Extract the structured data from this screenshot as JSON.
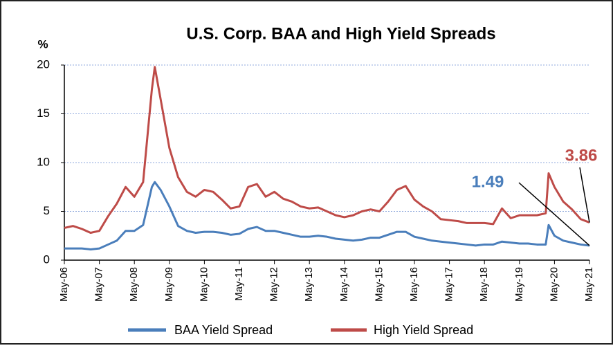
{
  "chart_data": {
    "type": "line",
    "title": "U.S. Corp. BAA and High Yield Spreads",
    "y_label": "%",
    "x": [
      "May-06",
      "Aug-06",
      "Nov-06",
      "Feb-07",
      "May-07",
      "Aug-07",
      "Nov-07",
      "Feb-08",
      "May-08",
      "Aug-08",
      "Nov-08",
      "Dec-08",
      "Feb-09",
      "May-09",
      "Aug-09",
      "Nov-09",
      "Feb-10",
      "May-10",
      "Aug-10",
      "Nov-10",
      "Feb-11",
      "May-11",
      "Aug-11",
      "Nov-11",
      "Feb-12",
      "May-12",
      "Aug-12",
      "Nov-12",
      "Feb-13",
      "May-13",
      "Aug-13",
      "Nov-13",
      "Feb-14",
      "May-14",
      "Aug-14",
      "Nov-14",
      "Feb-15",
      "May-15",
      "Aug-15",
      "Nov-15",
      "Feb-16",
      "May-16",
      "Aug-16",
      "Nov-16",
      "Feb-17",
      "May-17",
      "Aug-17",
      "Nov-17",
      "Feb-18",
      "May-18",
      "Aug-18",
      "Nov-18",
      "Feb-19",
      "May-19",
      "Aug-19",
      "Nov-19",
      "Feb-20",
      "Mar-20",
      "May-20",
      "Aug-20",
      "Nov-20",
      "Feb-21",
      "May-21"
    ],
    "series": [
      {
        "name": "BAA Yield Spread",
        "color": "#4a7ebb",
        "values": [
          1.2,
          1.2,
          1.2,
          1.1,
          1.2,
          1.6,
          2.0,
          3.0,
          3.0,
          3.6,
          7.5,
          8.0,
          7.2,
          5.5,
          3.5,
          3.0,
          2.8,
          2.9,
          2.9,
          2.8,
          2.6,
          2.7,
          3.2,
          3.4,
          3.0,
          3.0,
          2.8,
          2.6,
          2.4,
          2.4,
          2.5,
          2.4,
          2.2,
          2.1,
          2.0,
          2.1,
          2.3,
          2.3,
          2.6,
          2.9,
          2.9,
          2.4,
          2.2,
          2.0,
          1.9,
          1.8,
          1.7,
          1.6,
          1.5,
          1.6,
          1.6,
          1.9,
          1.8,
          1.7,
          1.7,
          1.6,
          1.6,
          3.6,
          2.5,
          2.0,
          1.8,
          1.6,
          1.49
        ]
      },
      {
        "name": "High Yield Spread",
        "color": "#be4b48",
        "values": [
          3.3,
          3.5,
          3.2,
          2.8,
          3.0,
          4.5,
          5.8,
          7.5,
          6.5,
          8.0,
          17.5,
          19.8,
          16.5,
          11.5,
          8.5,
          7.0,
          6.5,
          7.2,
          7.0,
          6.2,
          5.3,
          5.5,
          7.5,
          7.8,
          6.5,
          7.0,
          6.3,
          6.0,
          5.5,
          5.3,
          5.4,
          5.0,
          4.6,
          4.4,
          4.6,
          5.0,
          5.2,
          5.0,
          6.0,
          7.2,
          7.6,
          6.2,
          5.5,
          5.0,
          4.2,
          4.1,
          4.0,
          3.8,
          3.8,
          3.8,
          3.7,
          5.3,
          4.3,
          4.6,
          4.6,
          4.6,
          4.8,
          8.9,
          7.5,
          6.0,
          5.2,
          4.2,
          3.86
        ]
      }
    ],
    "annotations": [
      {
        "text": "1.49",
        "color": "#4a7ebb"
      },
      {
        "text": "3.86",
        "color": "#be4b48"
      }
    ],
    "xlim": [
      "May-06",
      "May-21"
    ],
    "xticks": [
      "May-06",
      "May-07",
      "May-08",
      "May-09",
      "May-10",
      "May-11",
      "May-12",
      "May-13",
      "May-14",
      "May-15",
      "May-16",
      "May-17",
      "May-18",
      "May-19",
      "May-20",
      "May-21"
    ],
    "ylim": [
      0,
      20
    ],
    "yticks": [
      0,
      5,
      10,
      15,
      20
    ],
    "grid": true,
    "legend": "bottom"
  }
}
